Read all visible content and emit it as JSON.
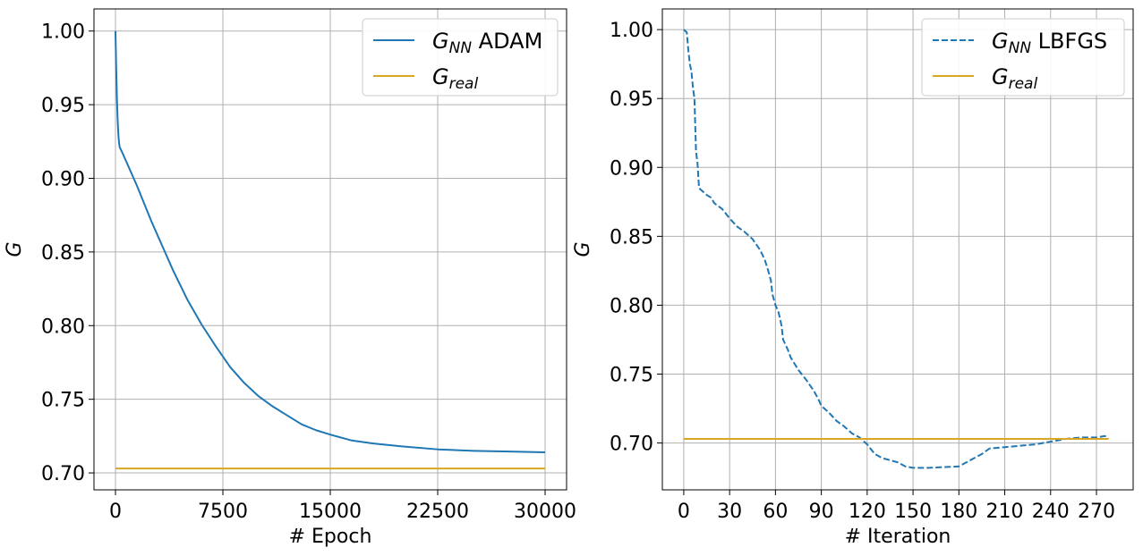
{
  "chart_data": [
    {
      "type": "line",
      "xlabel": "# Epoch",
      "ylabel": "G",
      "xlim": [
        -1500,
        31500
      ],
      "ylim": [
        0.6885,
        1.015
      ],
      "xticks": [
        0,
        7500,
        15000,
        22500,
        30000
      ],
      "xtick_labels": [
        "0",
        "7500",
        "15000",
        "22500",
        "30000"
      ],
      "yticks": [
        0.7,
        0.75,
        0.8,
        0.85,
        0.9,
        0.95,
        1.0
      ],
      "ytick_labels": [
        "0.70",
        "0.75",
        "0.80",
        "0.85",
        "0.90",
        "0.95",
        "1.00"
      ],
      "grid": true,
      "legend_position": "top-right",
      "series": [
        {
          "name": "G_NN ADAM",
          "legend_main": "G",
          "legend_sub": "NN",
          "legend_rest": " ADAM",
          "color": "#1f77b4",
          "style": "solid",
          "x": [
            0,
            20,
            50,
            100,
            150,
            200,
            250,
            300,
            500,
            1000,
            1500,
            2000,
            2500,
            3000,
            3500,
            4000,
            5000,
            6000,
            7000,
            8000,
            9000,
            10000,
            11000,
            12000,
            13000,
            14000,
            15000,
            16500,
            18000,
            20000,
            22500,
            25000,
            27500,
            30000
          ],
          "y": [
            1.0,
            0.99,
            0.975,
            0.955,
            0.94,
            0.93,
            0.924,
            0.921,
            0.917,
            0.906,
            0.895,
            0.883,
            0.871,
            0.86,
            0.849,
            0.838,
            0.818,
            0.801,
            0.786,
            0.772,
            0.761,
            0.752,
            0.745,
            0.739,
            0.733,
            0.729,
            0.726,
            0.722,
            0.72,
            0.718,
            0.716,
            0.715,
            0.7145,
            0.714
          ]
        },
        {
          "name": "G_real",
          "legend_main": "G",
          "legend_sub": "real",
          "legend_rest": "",
          "color": "#daa520",
          "style": "solid",
          "x": [
            0,
            30000
          ],
          "y": [
            0.703,
            0.703
          ]
        }
      ]
    },
    {
      "type": "line",
      "xlabel": "# Iteration",
      "ylabel": "G",
      "xlim": [
        -14,
        294
      ],
      "ylim": [
        0.666,
        1.015
      ],
      "xticks": [
        0,
        30,
        60,
        90,
        120,
        150,
        180,
        210,
        240,
        270
      ],
      "xtick_labels": [
        "0",
        "30",
        "60",
        "90",
        "120",
        "150",
        "180",
        "210",
        "240",
        "270"
      ],
      "yticks": [
        0.7,
        0.75,
        0.8,
        0.85,
        0.9,
        0.95,
        1.0
      ],
      "ytick_labels": [
        "0.70",
        "0.75",
        "0.80",
        "0.85",
        "0.90",
        "0.95",
        "1.00"
      ],
      "grid": true,
      "legend_position": "top-right",
      "series": [
        {
          "name": "G_NN LBFGS",
          "legend_main": "G",
          "legend_sub": "NN",
          "legend_rest": " LBFGS",
          "color": "#1f77b4",
          "style": "dashed",
          "x": [
            0,
            2,
            3,
            4,
            5,
            6,
            7,
            8,
            9,
            10,
            12,
            15,
            18,
            20,
            25,
            30,
            35,
            40,
            45,
            50,
            53,
            55,
            57,
            58,
            60,
            62,
            64,
            65,
            68,
            70,
            75,
            80,
            85,
            88,
            90,
            95,
            100,
            105,
            110,
            115,
            120,
            125,
            130,
            140,
            145,
            150,
            160,
            170,
            180,
            185,
            190,
            195,
            200,
            210,
            220,
            230,
            240,
            250,
            260,
            270,
            275,
            278
          ],
          "y": [
            1.0,
            0.998,
            0.985,
            0.975,
            0.97,
            0.958,
            0.95,
            0.912,
            0.903,
            0.885,
            0.883,
            0.88,
            0.878,
            0.874,
            0.87,
            0.863,
            0.857,
            0.853,
            0.848,
            0.84,
            0.833,
            0.826,
            0.818,
            0.808,
            0.8,
            0.795,
            0.785,
            0.775,
            0.768,
            0.762,
            0.753,
            0.746,
            0.738,
            0.732,
            0.727,
            0.722,
            0.716,
            0.712,
            0.707,
            0.704,
            0.699,
            0.692,
            0.689,
            0.686,
            0.683,
            0.682,
            0.682,
            0.6825,
            0.683,
            0.686,
            0.689,
            0.692,
            0.696,
            0.697,
            0.698,
            0.699,
            0.701,
            0.703,
            0.704,
            0.704,
            0.705,
            0.705
          ]
        },
        {
          "name": "G_real",
          "legend_main": "G",
          "legend_sub": "real",
          "legend_rest": "",
          "color": "#daa520",
          "style": "solid",
          "x": [
            0,
            278
          ],
          "y": [
            0.703,
            0.703
          ]
        }
      ]
    }
  ]
}
